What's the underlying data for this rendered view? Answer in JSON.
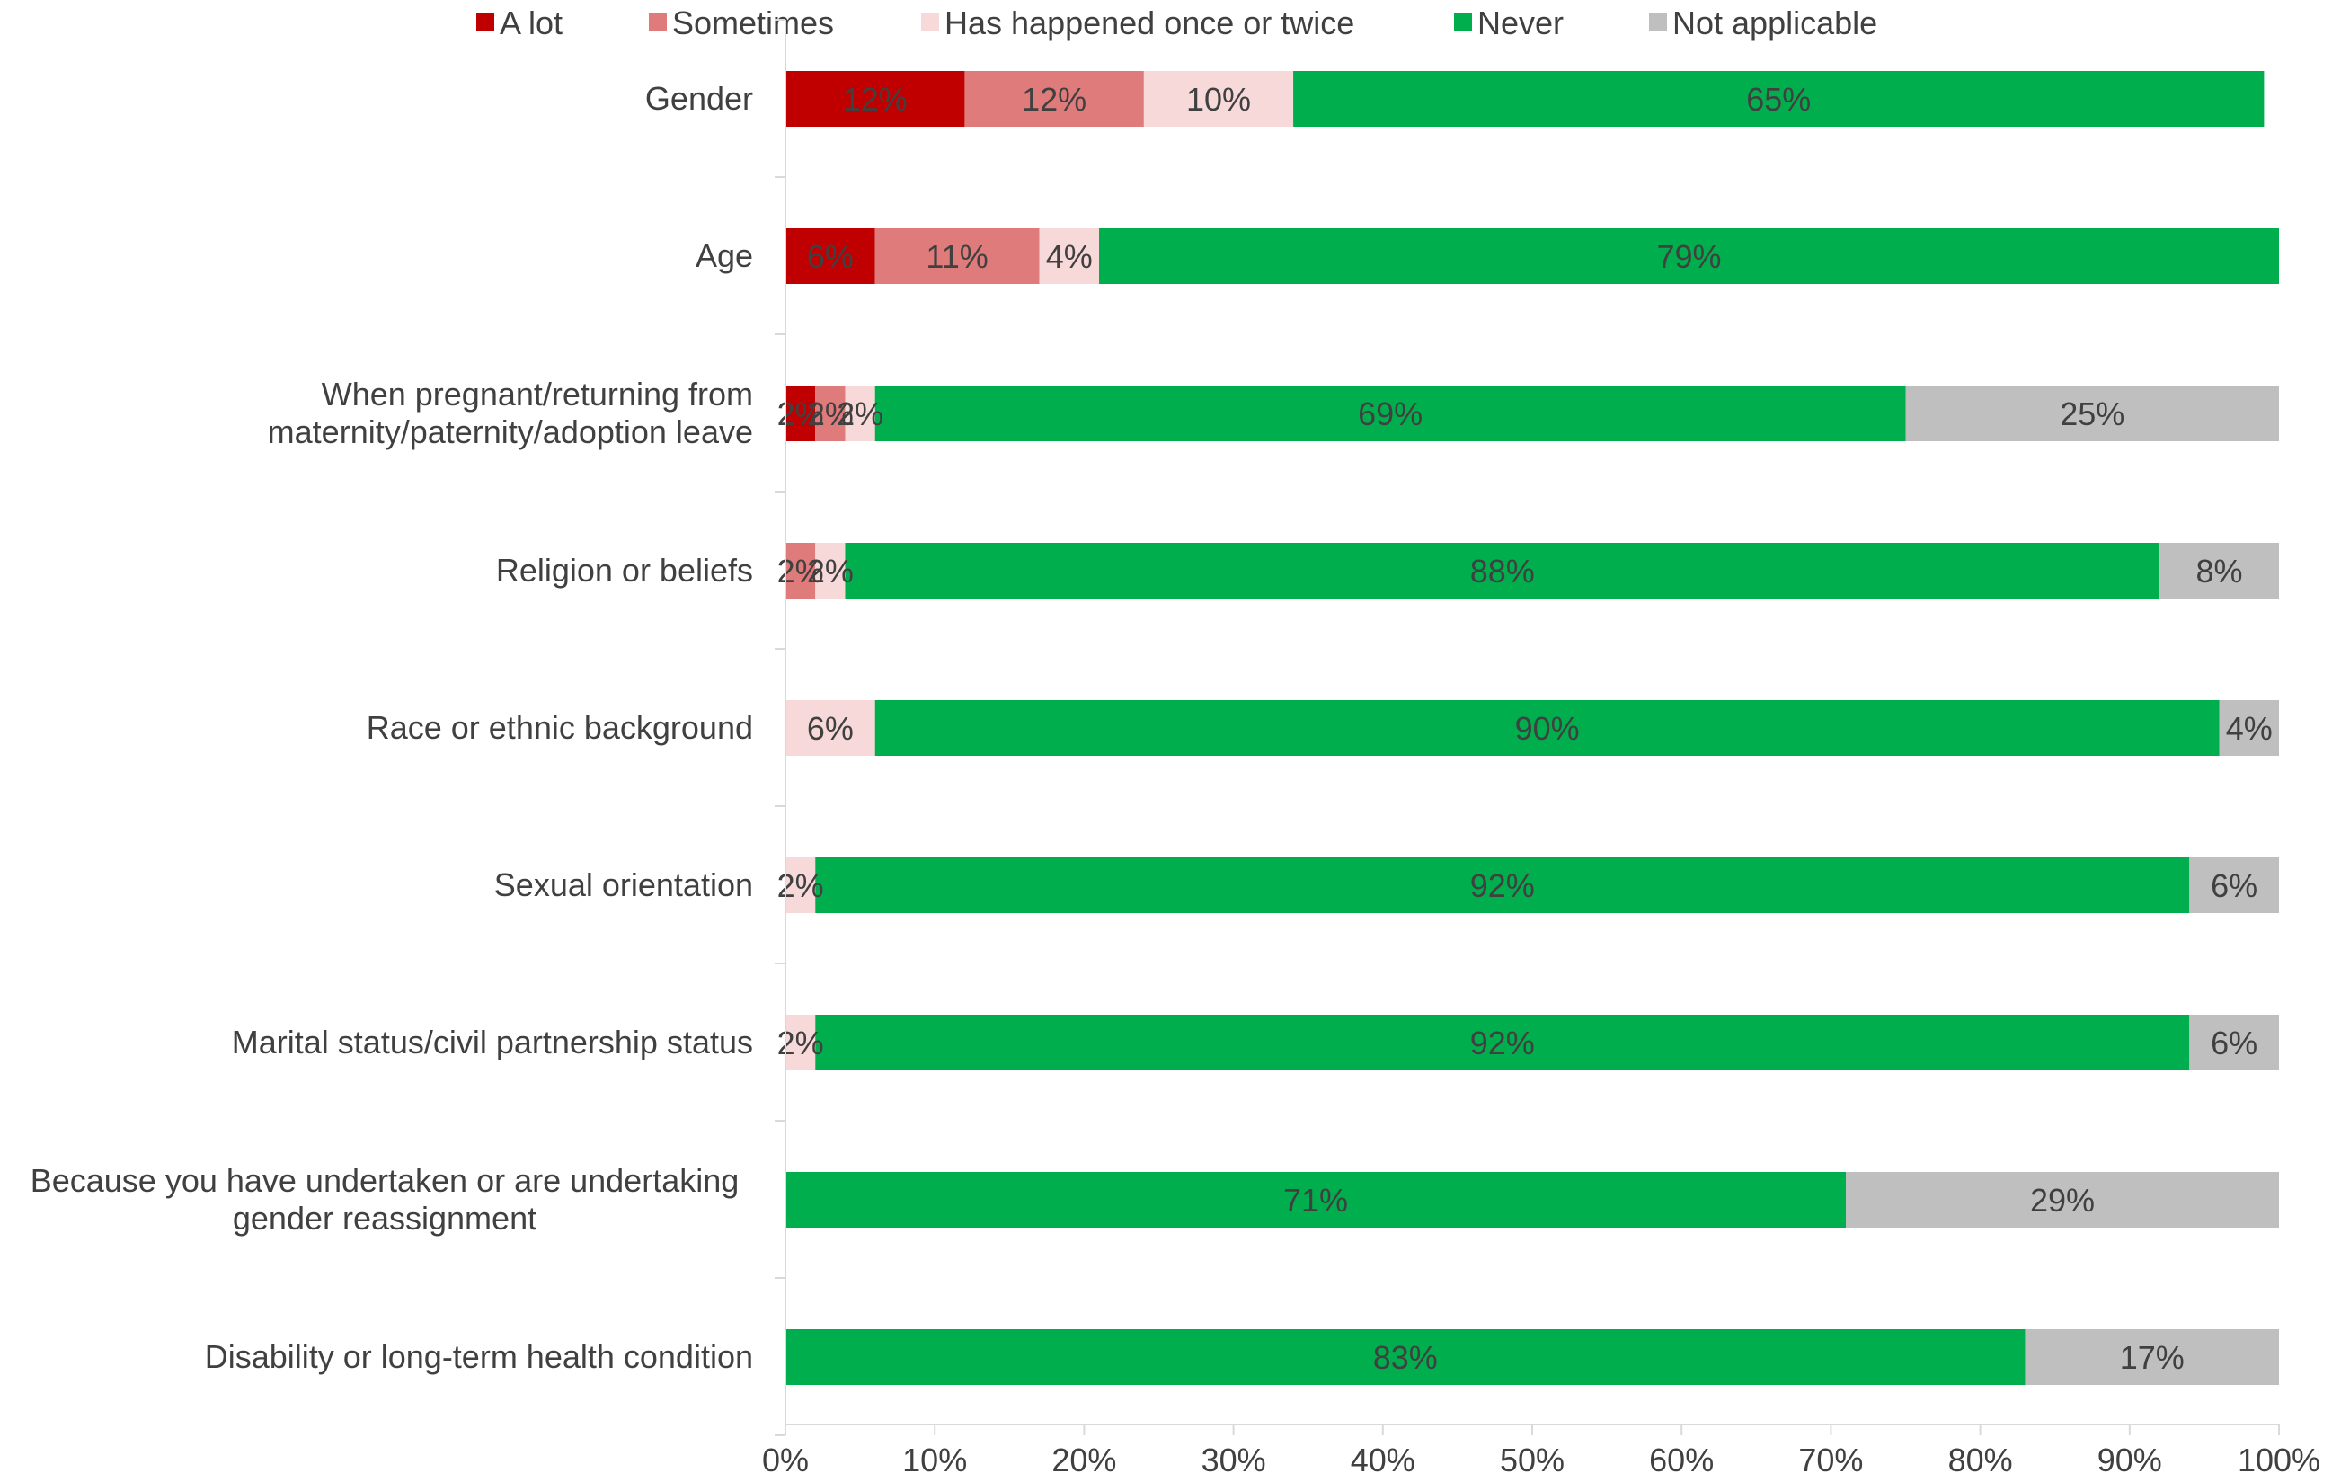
{
  "chart_data": {
    "type": "bar",
    "orientation": "horizontal",
    "stacked": true,
    "title": "",
    "xlabel": "",
    "ylabel": "",
    "xlim": [
      0,
      100
    ],
    "x_ticks": [
      "0%",
      "10%",
      "20%",
      "30%",
      "40%",
      "50%",
      "60%",
      "70%",
      "80%",
      "90%",
      "100%"
    ],
    "grid": false,
    "legend_position": "top",
    "categories": [
      "Gender",
      "Age",
      "When pregnant/returning from\nmaternity/paternity/adoption leave",
      "Religion or beliefs",
      "Race or ethnic background",
      "Sexual orientation",
      "Marital status/civil partnership status",
      "Because you have undertaken or are undertaking\ngender reassignment",
      "Disability or long-term health condition"
    ],
    "series": [
      {
        "name": "A lot",
        "color": "#C00000",
        "values": [
          12,
          6,
          2,
          0,
          0,
          0,
          0,
          0,
          0
        ]
      },
      {
        "name": "Sometimes",
        "color": "#E07B7B",
        "values": [
          12,
          11,
          2,
          2,
          0,
          0,
          0,
          0,
          0
        ]
      },
      {
        "name": "Has happened once or twice",
        "color": "#F8D9D9",
        "values": [
          10,
          4,
          2,
          2,
          6,
          2,
          2,
          0,
          0
        ]
      },
      {
        "name": "Never",
        "color": "#00AE4D",
        "values": [
          65,
          79,
          69,
          88,
          90,
          92,
          92,
          71,
          83
        ]
      },
      {
        "name": "Not applicable",
        "color": "#BFBFBF",
        "values": [
          0,
          0,
          25,
          8,
          4,
          6,
          6,
          29,
          17
        ]
      }
    ],
    "value_suffix": "%"
  }
}
